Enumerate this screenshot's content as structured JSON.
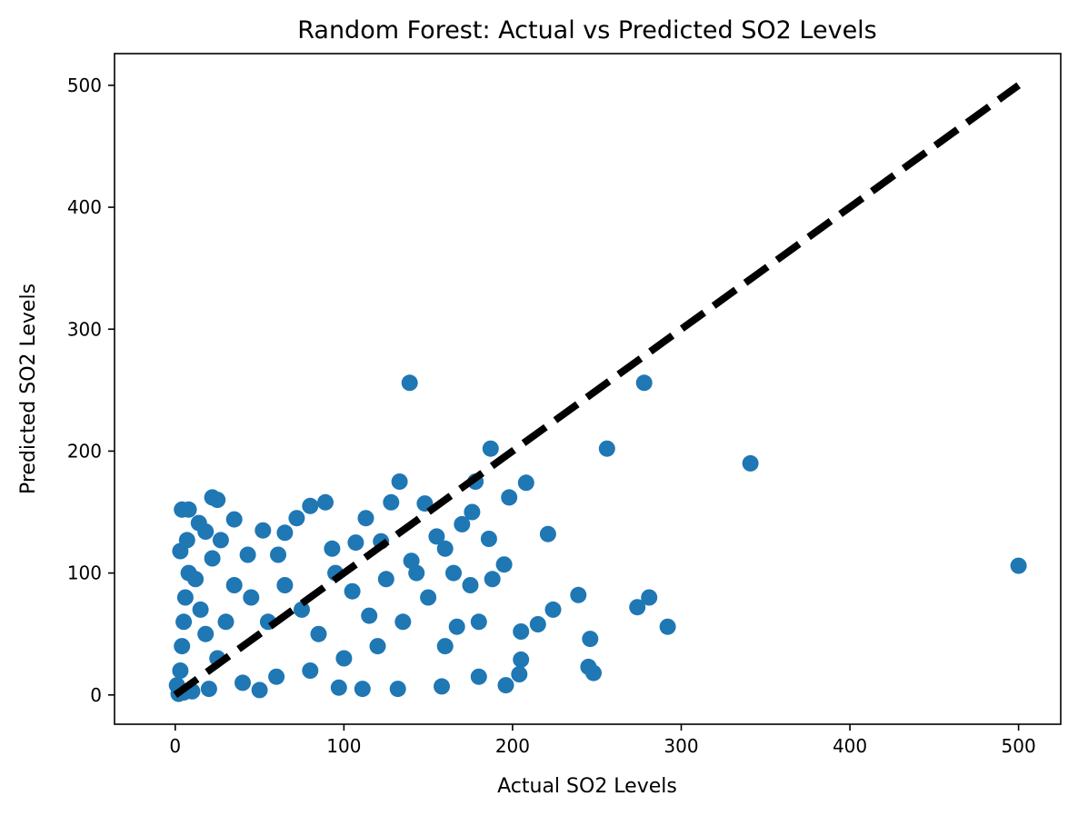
{
  "chart_data": {
    "type": "scatter",
    "title": "Random Forest: Actual vs Predicted SO2 Levels",
    "xlabel": "Actual SO2 Levels",
    "ylabel": "Predicted SO2 Levels",
    "xlim": [
      -36,
      525
    ],
    "ylim": [
      -24,
      526
    ],
    "xticks": [
      0,
      100,
      200,
      300,
      400,
      500
    ],
    "yticks": [
      0,
      100,
      200,
      300,
      400,
      500
    ],
    "grid": false,
    "marker_color": "#1f77b4",
    "reference_line": {
      "x": [
        0,
        500
      ],
      "y": [
        0,
        500
      ],
      "style": "dashed",
      "color": "#000000"
    },
    "series": [
      {
        "points": [
          [
            139,
            256
          ],
          [
            278,
            256
          ],
          [
            187,
            202
          ],
          [
            256,
            202
          ],
          [
            341,
            190
          ],
          [
            133,
            175
          ],
          [
            208,
            174
          ],
          [
            22,
            162
          ],
          [
            25,
            160
          ],
          [
            89,
            158
          ],
          [
            198,
            162
          ],
          [
            4,
            152
          ],
          [
            8,
            152
          ],
          [
            80,
            155
          ],
          [
            148,
            157
          ],
          [
            14,
            141
          ],
          [
            35,
            144
          ],
          [
            72,
            145
          ],
          [
            113,
            145
          ],
          [
            128,
            158
          ],
          [
            18,
            134
          ],
          [
            52,
            135
          ],
          [
            65,
            133
          ],
          [
            93,
            120
          ],
          [
            221,
            132
          ],
          [
            7,
            127
          ],
          [
            27,
            127
          ],
          [
            43,
            115
          ],
          [
            107,
            125
          ],
          [
            178,
            175
          ],
          [
            3,
            118
          ],
          [
            22,
            112
          ],
          [
            61,
            115
          ],
          [
            122,
            126
          ],
          [
            176,
            150
          ],
          [
            186,
            128
          ],
          [
            195,
            107
          ],
          [
            188,
            95
          ],
          [
            500,
            106
          ],
          [
            239,
            82
          ],
          [
            281,
            80
          ],
          [
            274,
            72
          ],
          [
            224,
            70
          ],
          [
            215,
            58
          ],
          [
            292,
            56
          ],
          [
            205,
            52
          ],
          [
            246,
            46
          ],
          [
            180,
            60
          ],
          [
            167,
            56
          ],
          [
            205,
            29
          ],
          [
            245,
            23
          ],
          [
            248,
            18
          ],
          [
            196,
            8
          ],
          [
            204,
            17
          ],
          [
            132,
            5
          ],
          [
            158,
            7
          ],
          [
            180,
            15
          ],
          [
            111,
            5
          ],
          [
            97,
            6
          ],
          [
            50,
            4
          ],
          [
            160,
            120
          ],
          [
            143,
            100
          ],
          [
            150,
            80
          ],
          [
            135,
            60
          ],
          [
            120,
            40
          ],
          [
            100,
            30
          ],
          [
            80,
            20
          ],
          [
            60,
            15
          ],
          [
            40,
            10
          ],
          [
            20,
            5
          ],
          [
            10,
            3
          ],
          [
            5,
            2
          ],
          [
            2,
            1
          ],
          [
            1,
            8
          ],
          [
            3,
            20
          ],
          [
            4,
            40
          ],
          [
            5,
            60
          ],
          [
            6,
            80
          ],
          [
            8,
            100
          ],
          [
            12,
            95
          ],
          [
            15,
            70
          ],
          [
            18,
            50
          ],
          [
            25,
            30
          ],
          [
            30,
            60
          ],
          [
            35,
            90
          ],
          [
            45,
            80
          ],
          [
            55,
            60
          ],
          [
            65,
            90
          ],
          [
            75,
            70
          ],
          [
            85,
            50
          ],
          [
            95,
            100
          ],
          [
            105,
            85
          ],
          [
            115,
            65
          ],
          [
            125,
            95
          ],
          [
            140,
            110
          ],
          [
            155,
            130
          ],
          [
            165,
            100
          ],
          [
            170,
            140
          ],
          [
            175,
            90
          ],
          [
            160,
            40
          ]
        ]
      }
    ]
  }
}
